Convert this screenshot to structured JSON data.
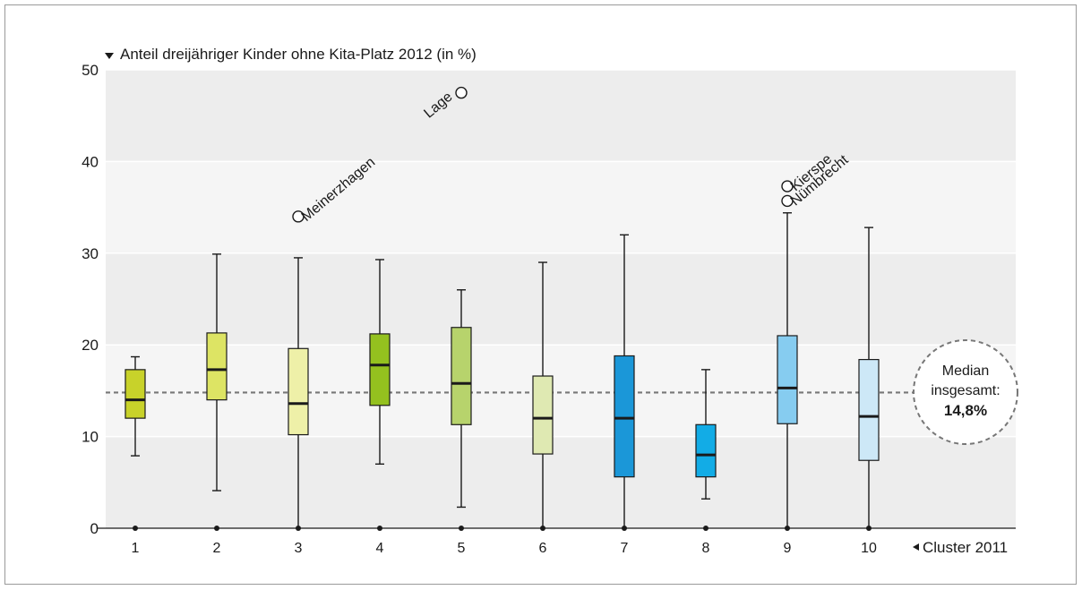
{
  "chart_data": {
    "type": "box",
    "ylabel": "Anteil dreijähriger Kinder ohne Kita-Platz 2012 (in %)",
    "xlabel": "Cluster 2011",
    "ylim": [
      0,
      50
    ],
    "yticks": [
      0,
      10,
      20,
      30,
      40,
      50
    ],
    "grid": "alternating horizontal bands",
    "reference_line": {
      "value": 14.8,
      "label_line1": "Median",
      "label_line2": "insgesamt:",
      "label_value": "14,8%"
    },
    "categories": [
      "1",
      "2",
      "3",
      "4",
      "5",
      "6",
      "7",
      "8",
      "9",
      "10"
    ],
    "boxes": [
      {
        "category": "1",
        "min": 7.9,
        "q1": 12.0,
        "median": 14.0,
        "q3": 17.3,
        "max": 18.7,
        "color": "#c8d22a"
      },
      {
        "category": "2",
        "min": 4.1,
        "q1": 14.0,
        "median": 17.3,
        "q3": 21.3,
        "max": 29.9,
        "color": "#dde464"
      },
      {
        "category": "3",
        "min": 0.0,
        "q1": 10.2,
        "median": 13.6,
        "q3": 19.6,
        "max": 29.5,
        "color": "#eef0a8"
      },
      {
        "category": "4",
        "min": 7.0,
        "q1": 13.4,
        "median": 17.8,
        "q3": 21.2,
        "max": 29.3,
        "color": "#94c11f"
      },
      {
        "category": "5",
        "min": 2.3,
        "q1": 11.3,
        "median": 15.8,
        "q3": 21.9,
        "max": 26.0,
        "color": "#b7d36c"
      },
      {
        "category": "6",
        "min": 0.0,
        "q1": 8.1,
        "median": 12.0,
        "q3": 16.6,
        "max": 29.0,
        "color": "#dfe9b2"
      },
      {
        "category": "7",
        "min": 0.0,
        "q1": 5.6,
        "median": 12.0,
        "q3": 18.8,
        "max": 32.0,
        "color": "#1b97d8"
      },
      {
        "category": "8",
        "min": 3.2,
        "q1": 5.6,
        "median": 8.0,
        "q3": 11.3,
        "max": 17.3,
        "color": "#12ace6"
      },
      {
        "category": "9",
        "min": 0.0,
        "q1": 11.4,
        "median": 15.3,
        "q3": 21.0,
        "max": 34.4,
        "color": "#86ccf0"
      },
      {
        "category": "10",
        "min": 0.0,
        "q1": 7.4,
        "median": 12.2,
        "q3": 18.4,
        "max": 32.8,
        "color": "#cde8f7"
      }
    ],
    "outliers": [
      {
        "category": "3",
        "value": 34.0,
        "label": "Meinerzhagen"
      },
      {
        "category": "5",
        "value": 47.5,
        "label": "Lage"
      },
      {
        "category": "9",
        "value": 37.3,
        "label": "Kierspe"
      },
      {
        "category": "9",
        "value": 35.7,
        "label": "Nümbrecht"
      }
    ]
  }
}
